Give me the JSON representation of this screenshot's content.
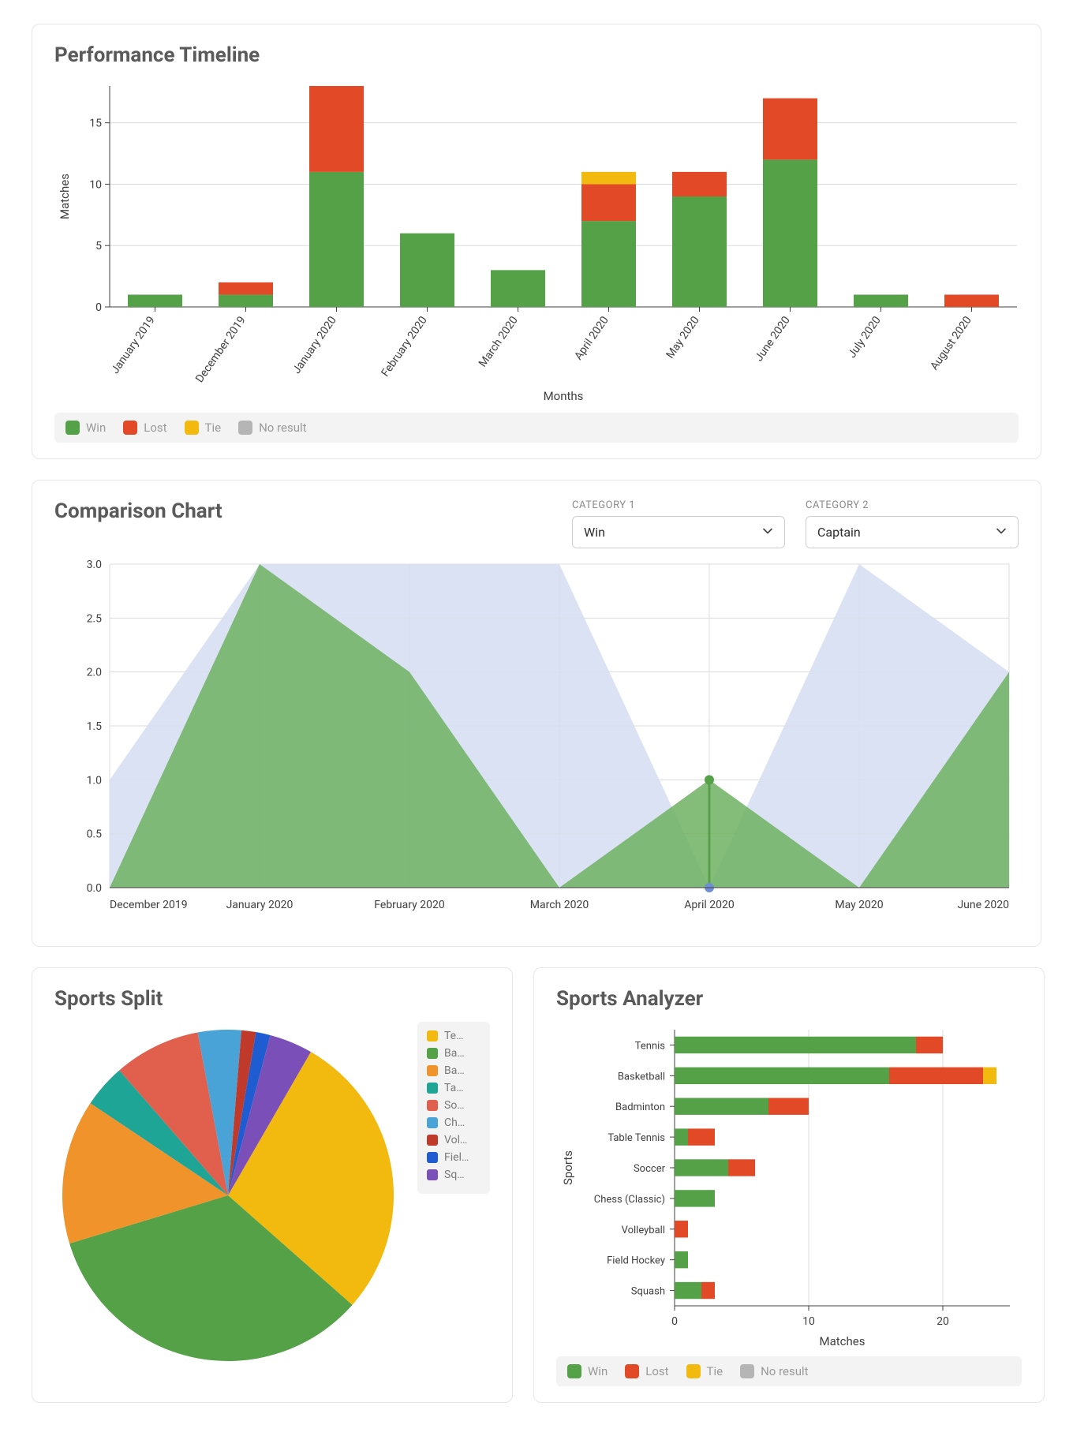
{
  "colors": {
    "win": "#54a148",
    "lost": "#e24a27",
    "tie": "#f2b90e",
    "no_result": "#b5b5b5",
    "grid": "#dcdcdc",
    "axis": "#404040",
    "card_border": "#e6e6e6",
    "legend_bg": "#f3f3f3",
    "text_muted": "#9a9a9a",
    "title": "#5a5a5a",
    "captain_fill": "#d7dff2",
    "captain_point": "#6f8fd6",
    "green_area": "#6fb162"
  },
  "timeline": {
    "title": "Performance Timeline",
    "x_label": "Months",
    "y_label": "Matches",
    "ylim": [
      0,
      18
    ],
    "yticks": [
      0,
      5,
      10,
      15
    ],
    "categories": [
      "January 2019",
      "December 2019",
      "January 2020",
      "February 2020",
      "March 2020",
      "April 2020",
      "May 2020",
      "June 2020",
      "July 2020",
      "August 2020"
    ],
    "series_order": [
      "win",
      "lost",
      "tie",
      "no_result"
    ],
    "legend": {
      "win": "Win",
      "lost": "Lost",
      "tie": "Tie",
      "no_result": "No result"
    },
    "data": [
      {
        "win": 1,
        "lost": 0,
        "tie": 0,
        "no_result": 0
      },
      {
        "win": 1,
        "lost": 1,
        "tie": 0,
        "no_result": 0
      },
      {
        "win": 11,
        "lost": 7,
        "tie": 0,
        "no_result": 0
      },
      {
        "win": 6,
        "lost": 0,
        "tie": 0,
        "no_result": 0
      },
      {
        "win": 3,
        "lost": 0,
        "tie": 0,
        "no_result": 0
      },
      {
        "win": 7,
        "lost": 3,
        "tie": 1,
        "no_result": 0
      },
      {
        "win": 9,
        "lost": 2,
        "tie": 0,
        "no_result": 0
      },
      {
        "win": 12,
        "lost": 5,
        "tie": 0,
        "no_result": 0
      },
      {
        "win": 1,
        "lost": 0,
        "tie": 0,
        "no_result": 0
      },
      {
        "win": 0,
        "lost": 1,
        "tie": 0,
        "no_result": 0
      }
    ],
    "bar_width": 0.6,
    "rotate_xticks": -55
  },
  "comparison": {
    "title": "Comparison Chart",
    "cat1_label": "CATEGORY 1",
    "cat2_label": "CATEGORY 2",
    "cat1_value": "Win",
    "cat2_value": "Captain",
    "ylim": [
      0,
      3
    ],
    "ytick_step": 0.5,
    "categories": [
      "December 2019",
      "January 2020",
      "February 2020",
      "March 2020",
      "April 2020",
      "May 2020",
      "June 2020"
    ],
    "captain": [
      1,
      3,
      3,
      3,
      0,
      3,
      2
    ],
    "win": [
      0,
      3,
      2,
      0,
      1,
      0,
      2
    ],
    "highlight_index": 4
  },
  "sports_split": {
    "title": "Sports Split",
    "items": [
      {
        "label": "Te…",
        "full": "Tennis",
        "value": 20,
        "color": "#f2b90e"
      },
      {
        "label": "Ba…",
        "full": "Basketball",
        "value": 24,
        "color": "#54a148"
      },
      {
        "label": "Ba…",
        "full": "Badminton",
        "value": 10,
        "color": "#f0932b"
      },
      {
        "label": "Ta…",
        "full": "Table Tennis",
        "value": 3,
        "color": "#1fa596"
      },
      {
        "label": "So…",
        "full": "Soccer",
        "value": 6,
        "color": "#e0604d"
      },
      {
        "label": "Ch…",
        "full": "Chess (Classic)",
        "value": 3,
        "color": "#4aa3d6"
      },
      {
        "label": "Vol…",
        "full": "Volleyball",
        "value": 1,
        "color": "#c03a2b"
      },
      {
        "label": "Fiel…",
        "full": "Field Hockey",
        "value": 1,
        "color": "#1f5bd1"
      },
      {
        "label": "Sq…",
        "full": "Squash",
        "value": 3,
        "color": "#7a4fb8"
      }
    ],
    "start_angle_deg": -60
  },
  "sports_analyzer": {
    "title": "Sports Analyzer",
    "x_label": "Matches",
    "y_label": "Sports",
    "xlim": [
      0,
      25
    ],
    "xticks": [
      0,
      10,
      20
    ],
    "legend": {
      "win": "Win",
      "lost": "Lost",
      "tie": "Tie",
      "no_result": "No result"
    },
    "rows": [
      {
        "label": "Tennis",
        "win": 18,
        "lost": 2,
        "tie": 0,
        "no_result": 0
      },
      {
        "label": "Basketball",
        "win": 16,
        "lost": 7,
        "tie": 1,
        "no_result": 0
      },
      {
        "label": "Badminton",
        "win": 7,
        "lost": 3,
        "tie": 0,
        "no_result": 0
      },
      {
        "label": "Table Tennis",
        "win": 1,
        "lost": 2,
        "tie": 0,
        "no_result": 0
      },
      {
        "label": "Soccer",
        "win": 4,
        "lost": 2,
        "tie": 0,
        "no_result": 0
      },
      {
        "label": "Chess (Classic)",
        "win": 3,
        "lost": 0,
        "tie": 0,
        "no_result": 0
      },
      {
        "label": "Volleyball",
        "win": 0,
        "lost": 1,
        "tie": 0,
        "no_result": 0
      },
      {
        "label": "Field Hockey",
        "win": 1,
        "lost": 0,
        "tie": 0,
        "no_result": 0
      },
      {
        "label": "Squash",
        "win": 2,
        "lost": 1,
        "tie": 0,
        "no_result": 0
      }
    ],
    "bar_height": 0.55
  }
}
